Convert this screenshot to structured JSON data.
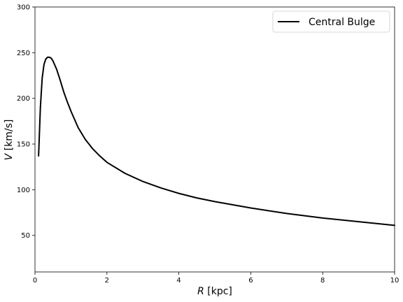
{
  "chart_data": {
    "type": "line",
    "xlabel_symbol": "R",
    "xlabel_unit": " [kpc]",
    "ylabel_symbol": "V",
    "ylabel_unit": " [km/s]",
    "xlim": [
      0,
      10
    ],
    "ylim": [
      10,
      300
    ],
    "x_ticks": [
      0,
      2,
      4,
      6,
      8,
      10
    ],
    "y_ticks": [
      50,
      100,
      150,
      200,
      250,
      300
    ],
    "x_tick_labels": [
      "0",
      "2",
      "4",
      "6",
      "8",
      "10"
    ],
    "y_tick_labels": [
      "50",
      "100",
      "150",
      "200",
      "250",
      "300"
    ],
    "grid": false,
    "legend_position": "top-right",
    "series": [
      {
        "name": "Central Bulge",
        "color": "#000000",
        "x": [
          0.1,
          0.15,
          0.2,
          0.25,
          0.3,
          0.35,
          0.4,
          0.45,
          0.5,
          0.6,
          0.7,
          0.8,
          0.9,
          1.0,
          1.2,
          1.4,
          1.6,
          1.8,
          2.0,
          2.5,
          3.0,
          3.5,
          4.0,
          4.5,
          5.0,
          6.0,
          7.0,
          8.0,
          9.0,
          10.0
        ],
        "y": [
          137,
          190,
          222,
          237,
          243,
          245,
          245,
          244,
          241,
          232,
          220,
          207,
          196,
          186,
          168,
          155,
          145,
          137,
          130,
          118,
          109,
          102,
          96,
          91,
          87,
          80,
          74,
          69,
          65,
          61
        ]
      }
    ]
  }
}
